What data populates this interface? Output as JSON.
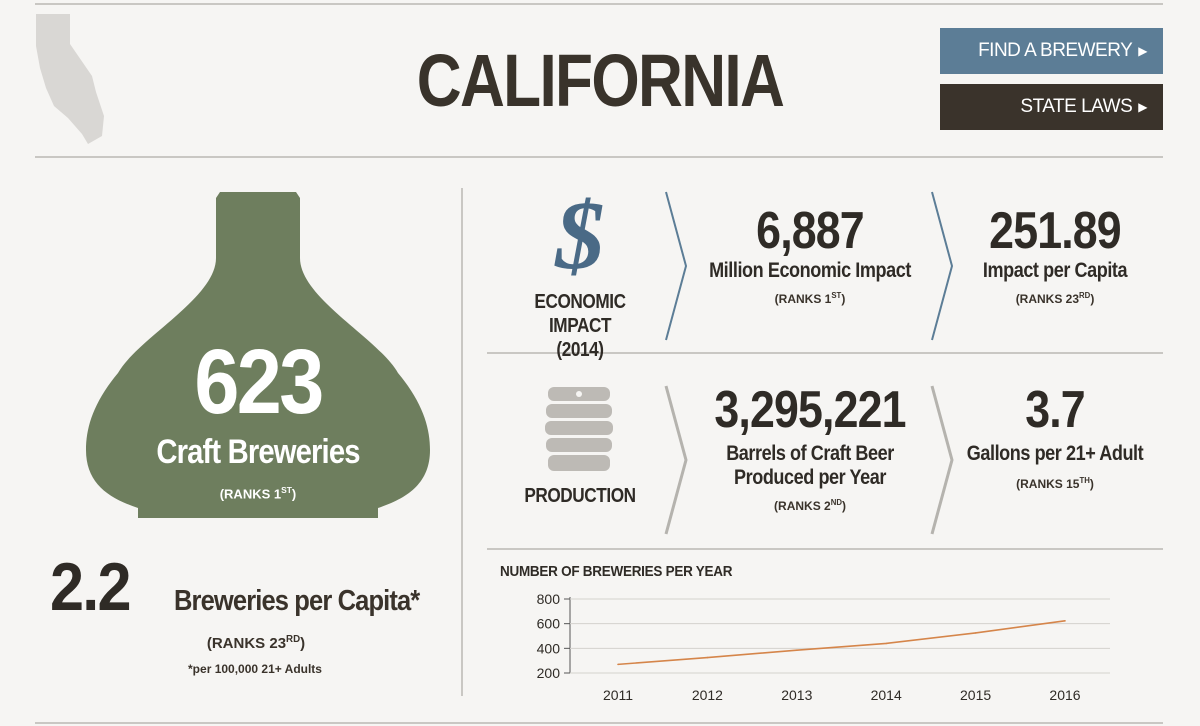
{
  "header": {
    "title": "CALIFORNIA",
    "find_brewery_label": "FIND A BREWERY",
    "state_laws_label": "STATE LAWS"
  },
  "colors": {
    "bottle": "#6e7e5e",
    "find_button": "#5c7d96",
    "laws_button": "#3a332b",
    "dollar": "#4a6a86",
    "economic_chevron": "#5c7d96",
    "production_chevron": "#b5b3ae",
    "chart_line": "#d5854a",
    "state_map": "#d9d7d4"
  },
  "icons": {
    "state": "california-state-icon",
    "economic": "dollar-icon",
    "production": "keg-icon"
  },
  "breweries": {
    "count": "623",
    "label": "Craft Breweries",
    "rank_prefix": "(RANKS 1",
    "rank_suffix": "ST",
    "rank_close": ")"
  },
  "per_capita": {
    "value": "2.2",
    "label": "Breweries per Capita*",
    "rank_prefix": "(RANKS 23",
    "rank_suffix": "RD",
    "rank_close": ")",
    "note": "*per 100,000 21+ Adults"
  },
  "economic": {
    "category_line1": "ECONOMIC IMPACT",
    "category_line2": "(2014)",
    "stat1": {
      "value": "6,887",
      "label": "Million Economic Impact",
      "rank_prefix": "(RANKS 1",
      "rank_suffix": "ST",
      "rank_close": ")"
    },
    "stat2": {
      "value": "251.89",
      "label": "Impact per Capita",
      "rank_prefix": "(RANKS 23",
      "rank_suffix": "RD",
      "rank_close": ")"
    }
  },
  "production": {
    "category": "PRODUCTION",
    "stat1": {
      "value": "3,295,221",
      "label_line1": "Barrels of Craft Beer",
      "label_line2": "Produced per Year",
      "rank_prefix": "(RANKS 2",
      "rank_suffix": "ND",
      "rank_close": ")"
    },
    "stat2": {
      "value": "3.7",
      "label": "Gallons per 21+ Adult",
      "rank_prefix": "(RANKS 15",
      "rank_suffix": "TH",
      "rank_close": ")"
    }
  },
  "chart_data": {
    "type": "line",
    "title": "NUMBER OF BREWERIES PER YEAR",
    "x": [
      "2011",
      "2012",
      "2013",
      "2014",
      "2015",
      "2016"
    ],
    "series": [
      {
        "values": [
          270,
          325,
          385,
          440,
          525,
          623
        ]
      }
    ],
    "yticks": [
      200,
      400,
      600,
      800
    ],
    "ylim": [
      200,
      800
    ],
    "xlabel": "",
    "ylabel": "",
    "grid": true
  }
}
